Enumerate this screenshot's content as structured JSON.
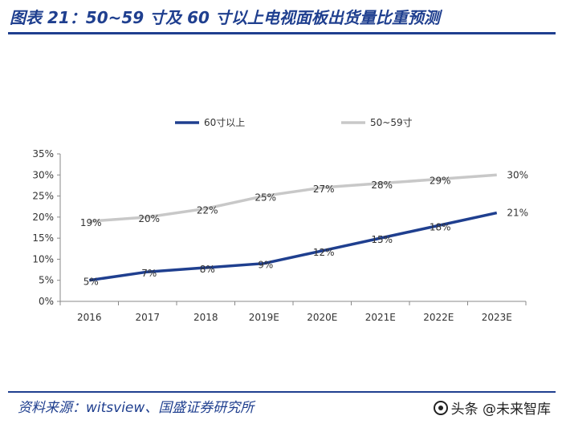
{
  "header": {
    "title": "图表 21：50~59 寸及 60 寸以上电视面板出货量比重预测"
  },
  "footer": {
    "source": "资料来源：witsview、国盛证券研究所",
    "watermark": "头条 @未来智库"
  },
  "colors": {
    "accent": "#1f3f8f",
    "series_60": "#1f3f8f",
    "series_50_59": "#c8c8c8"
  },
  "chart_data": {
    "type": "line",
    "categories": [
      "2016",
      "2017",
      "2018",
      "2019E",
      "2020E",
      "2021E",
      "2022E",
      "2023E"
    ],
    "series": [
      {
        "name": "60寸以上",
        "values": [
          5,
          7,
          8,
          9,
          12,
          15,
          18,
          21
        ],
        "labels": [
          "5%",
          "7%",
          "8%",
          "9%",
          "12%",
          "15%",
          "18%",
          "21%"
        ]
      },
      {
        "name": "50~59寸",
        "values": [
          19,
          20,
          22,
          25,
          27,
          28,
          29,
          30
        ],
        "labels": [
          "19%",
          "20%",
          "22%",
          "25%",
          "27%",
          "28%",
          "29%",
          "30%"
        ]
      }
    ],
    "yticks": [
      "0%",
      "5%",
      "10%",
      "15%",
      "20%",
      "25%",
      "30%",
      "35%"
    ],
    "ylim": [
      0,
      35
    ],
    "grid": false,
    "legend_position": "top"
  }
}
